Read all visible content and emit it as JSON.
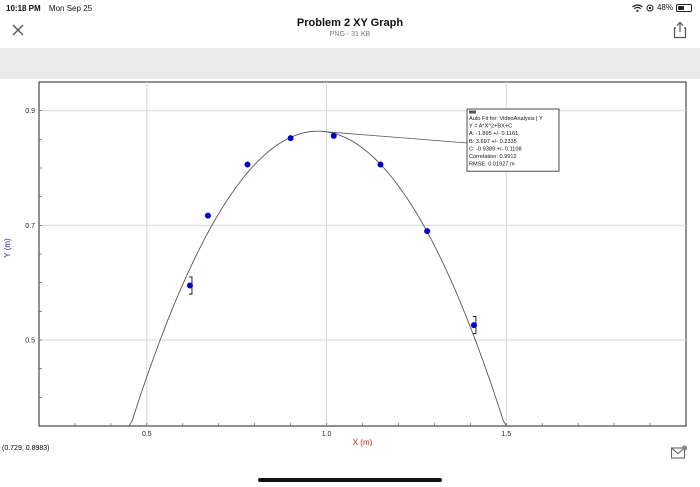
{
  "status_bar": {
    "time": "10:18 PM",
    "date": "Mon Sep 25",
    "battery": "48%",
    "battery_level": 0.48
  },
  "header": {
    "title": "Problem 2 XY Graph",
    "subtitle": "PNG - 31 KB"
  },
  "icons": {
    "close": "close-icon",
    "share": "share-icon",
    "wifi": "wifi-icon",
    "battery": "battery-icon",
    "mail": "mail-icon"
  },
  "coord_readout": "(0.729, 0.8983)",
  "chart_data": {
    "type": "scatter",
    "xlabel": "X (m)",
    "ylabel": "Y (m)",
    "xlim": [
      0.2,
      2.0
    ],
    "ylim": [
      0.35,
      0.95
    ],
    "x_ticks": [
      0.5,
      1.0,
      1.5
    ],
    "x_tick_labels": [
      "0.5",
      "1.0",
      "1.5"
    ],
    "y_ticks": [
      0.5,
      0.7,
      0.9
    ],
    "y_tick_labels": [
      "0.5",
      "0.7",
      "0.9"
    ],
    "grid": true,
    "colors": {
      "points": "#0000cc",
      "fit": "#555555",
      "xlabel": "#cc2222",
      "ylabel": "#2222aa"
    },
    "points": [
      {
        "x": 0.62,
        "y": 0.595,
        "err": 0.015
      },
      {
        "x": 0.67,
        "y": 0.717
      },
      {
        "x": 0.78,
        "y": 0.806
      },
      {
        "x": 0.9,
        "y": 0.852
      },
      {
        "x": 1.02,
        "y": 0.856
      },
      {
        "x": 1.15,
        "y": 0.806
      },
      {
        "x": 1.28,
        "y": 0.69
      },
      {
        "x": 1.41,
        "y": 0.526,
        "err": 0.015
      }
    ],
    "fit": {
      "A": -1.895,
      "B": 3.697,
      "C": -0.9389,
      "x_from": 0.45,
      "x_to": 1.5
    },
    "fit_box": {
      "label": "Auto Fit for: VideoAnalysis | Y",
      "lines": [
        "Y = A*X^2+BX+C",
        "A: -1.895 +/- 0.1161",
        "B: 3.697 +/- 0.2335",
        "C: -0.9389 +/- 0.1108",
        "Correlation: 0.9912",
        "RMSE: 0.01927 m"
      ],
      "anchor_x": 1.0
    }
  }
}
